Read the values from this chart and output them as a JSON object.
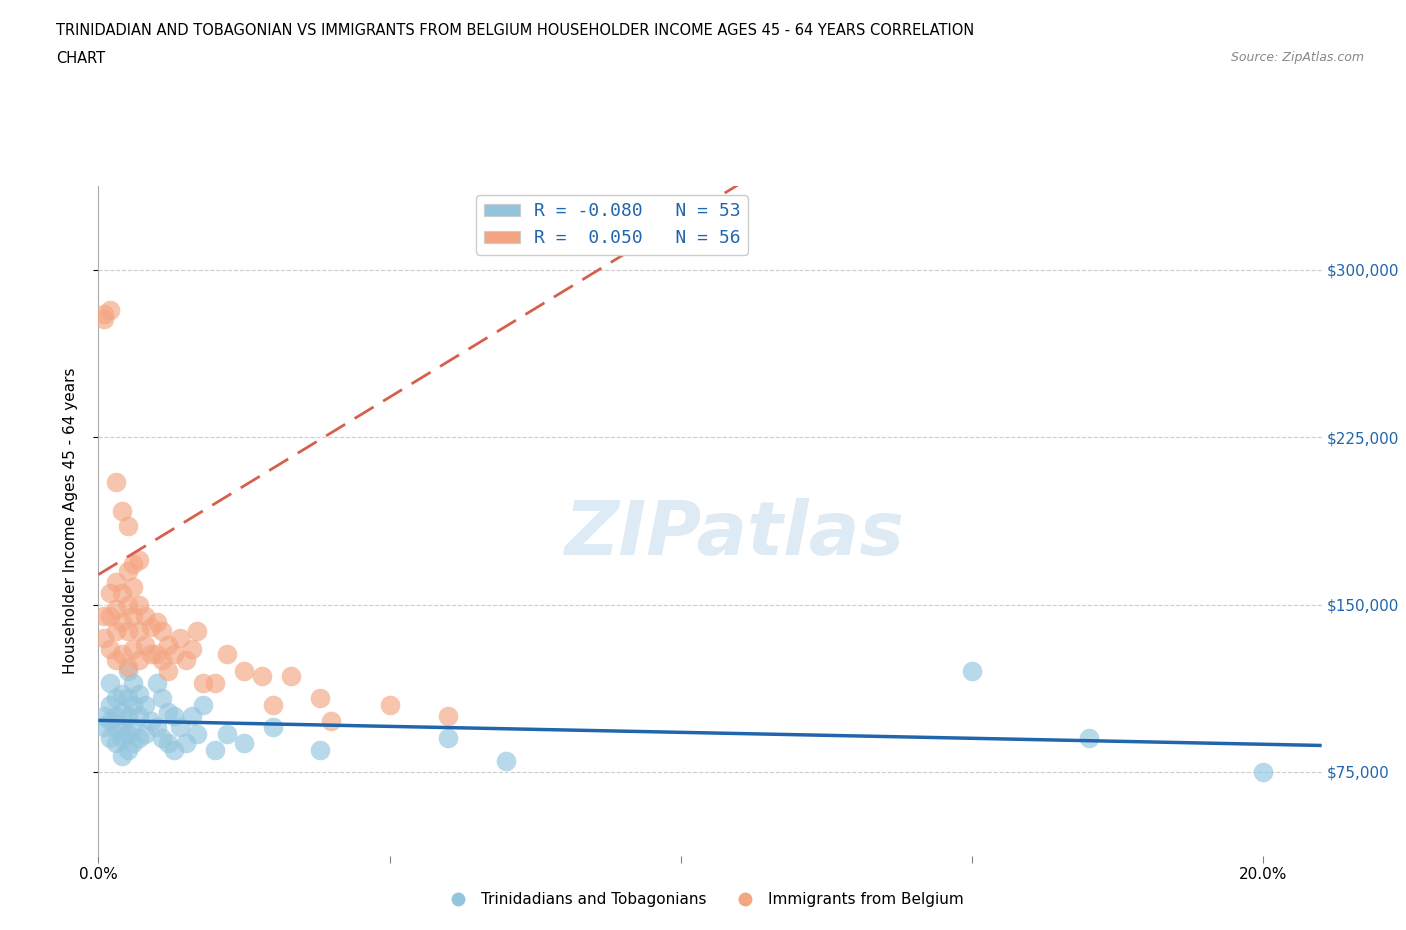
{
  "title_line1": "TRINIDADIAN AND TOBAGONIAN VS IMMIGRANTS FROM BELGIUM HOUSEHOLDER INCOME AGES 45 - 64 YEARS CORRELATION",
  "title_line2": "CHART",
  "source": "Source: ZipAtlas.com",
  "ylabel": "Householder Income Ages 45 - 64 years",
  "xlim": [
    0.0,
    0.21
  ],
  "ylim": [
    37500,
    337500
  ],
  "yticks": [
    75000,
    150000,
    225000,
    300000
  ],
  "ytick_labels": [
    "$75,000",
    "$150,000",
    "$225,000",
    "$300,000"
  ],
  "xticks": [
    0.0,
    0.05,
    0.1,
    0.15,
    0.2
  ],
  "xtick_labels": [
    "0.0%",
    "",
    "",
    "",
    "20.0%"
  ],
  "legend_blue_label": "R = -0.080   N = 53",
  "legend_pink_label": "R =  0.050   N = 56",
  "legend_label_blue": "Trinidadians and Tobagonians",
  "legend_label_pink": "Immigrants from Belgium",
  "blue_color": "#92c5de",
  "pink_color": "#f4a582",
  "blue_line_color": "#2166ac",
  "pink_line_color": "#d6604d",
  "watermark": "ZIPatlas",
  "blue_R": -0.08,
  "pink_R": 0.05,
  "blue_scatter_x": [
    0.001,
    0.001,
    0.002,
    0.002,
    0.002,
    0.002,
    0.003,
    0.003,
    0.003,
    0.003,
    0.004,
    0.004,
    0.004,
    0.004,
    0.004,
    0.005,
    0.005,
    0.005,
    0.005,
    0.005,
    0.006,
    0.006,
    0.006,
    0.006,
    0.007,
    0.007,
    0.007,
    0.008,
    0.008,
    0.009,
    0.01,
    0.01,
    0.011,
    0.011,
    0.012,
    0.012,
    0.013,
    0.013,
    0.014,
    0.015,
    0.016,
    0.017,
    0.018,
    0.02,
    0.022,
    0.025,
    0.03,
    0.038,
    0.06,
    0.07,
    0.15,
    0.17,
    0.2
  ],
  "blue_scatter_y": [
    100000,
    95000,
    115000,
    105000,
    98000,
    90000,
    108000,
    100000,
    95000,
    88000,
    110000,
    102000,
    95000,
    90000,
    82000,
    120000,
    108000,
    100000,
    92000,
    85000,
    115000,
    105000,
    95000,
    88000,
    110000,
    100000,
    90000,
    105000,
    92000,
    98000,
    115000,
    95000,
    108000,
    90000,
    102000,
    88000,
    100000,
    85000,
    95000,
    88000,
    100000,
    92000,
    105000,
    85000,
    92000,
    88000,
    95000,
    85000,
    90000,
    80000,
    120000,
    90000,
    75000
  ],
  "pink_scatter_x": [
    0.001,
    0.001,
    0.002,
    0.002,
    0.002,
    0.003,
    0.003,
    0.003,
    0.003,
    0.004,
    0.004,
    0.004,
    0.005,
    0.005,
    0.005,
    0.005,
    0.006,
    0.006,
    0.006,
    0.007,
    0.007,
    0.007,
    0.008,
    0.008,
    0.009,
    0.009,
    0.01,
    0.01,
    0.011,
    0.011,
    0.012,
    0.012,
    0.013,
    0.014,
    0.015,
    0.016,
    0.017,
    0.018,
    0.02,
    0.022,
    0.025,
    0.028,
    0.03,
    0.033,
    0.038,
    0.04,
    0.05,
    0.06,
    0.001,
    0.001,
    0.002,
    0.003,
    0.004,
    0.005,
    0.006,
    0.007
  ],
  "pink_scatter_y": [
    145000,
    135000,
    155000,
    145000,
    130000,
    160000,
    148000,
    138000,
    125000,
    155000,
    142000,
    128000,
    165000,
    150000,
    138000,
    122000,
    158000,
    145000,
    130000,
    150000,
    138000,
    125000,
    145000,
    132000,
    140000,
    128000,
    142000,
    128000,
    138000,
    125000,
    132000,
    120000,
    128000,
    135000,
    125000,
    130000,
    138000,
    115000,
    115000,
    128000,
    120000,
    118000,
    105000,
    118000,
    108000,
    98000,
    105000,
    100000,
    280000,
    278000,
    282000,
    205000,
    192000,
    185000,
    168000,
    170000
  ]
}
